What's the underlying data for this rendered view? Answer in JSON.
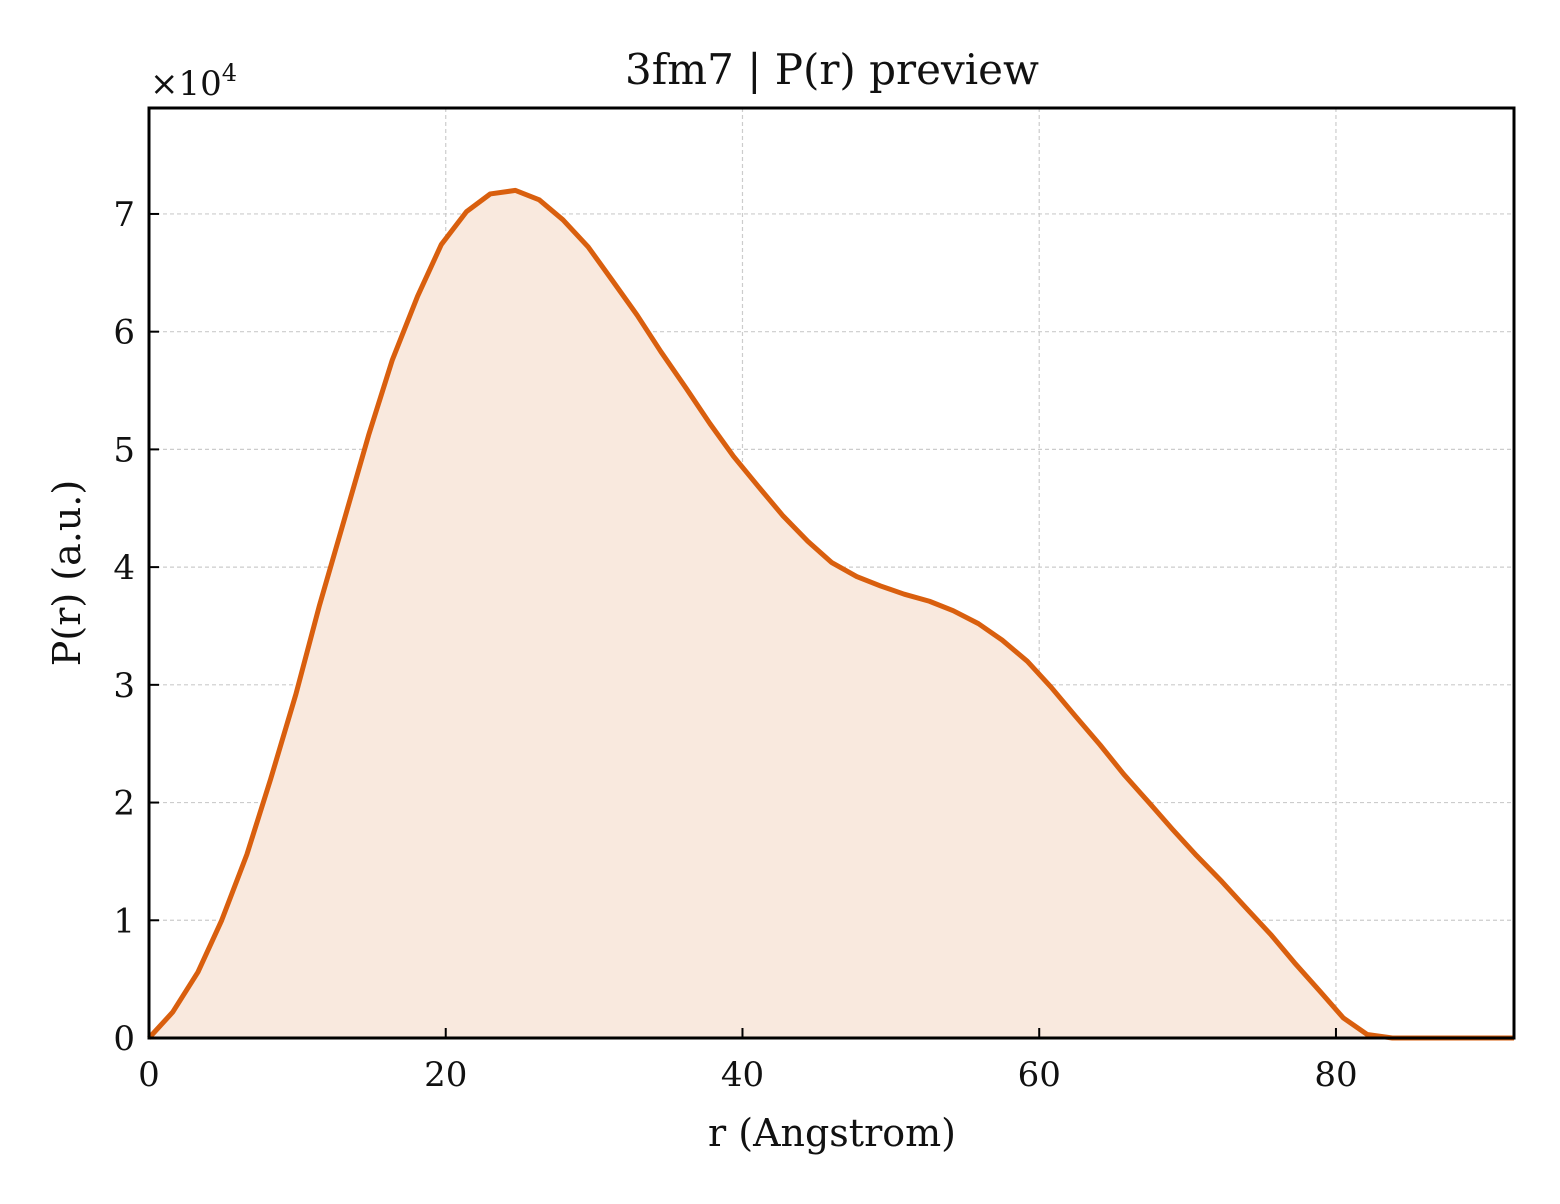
{
  "chart_data": {
    "type": "area",
    "title": "3fm7 | P(r) preview",
    "xlabel": "r (Angstrom)",
    "ylabel": "P(r) (a.u.)",
    "y_scale_label": "×10",
    "y_scale_exponent": "4",
    "xlim": [
      0,
      92
    ],
    "ylim": [
      0,
      7.9
    ],
    "x_ticks": [
      0,
      20,
      40,
      60,
      80
    ],
    "y_ticks": [
      0,
      1,
      2,
      3,
      4,
      5,
      6,
      7
    ],
    "grid": true,
    "colors": {
      "line": "#d95f0e",
      "fill": "#f9e9de",
      "grid": "#cccccc",
      "axes": "#000000"
    },
    "series": [
      {
        "x": [
          0,
          1.6,
          3.3,
          4.9,
          6.6,
          8.2,
          9.9,
          11.5,
          13.2,
          14.8,
          16.4,
          18.1,
          19.7,
          21.4,
          23.0,
          24.7,
          26.3,
          27.9,
          29.6,
          31.2,
          32.9,
          34.5,
          36.2,
          37.8,
          39.4,
          41.1,
          42.7,
          44.4,
          46.0,
          47.7,
          49.3,
          50.9,
          52.6,
          54.2,
          55.9,
          57.5,
          59.2,
          60.8,
          62.4,
          64.1,
          65.7,
          67.4,
          69.0,
          70.6,
          72.3,
          73.9,
          75.6,
          77.2,
          78.9,
          80.5,
          82.1,
          83.8,
          85.4,
          87.1,
          88.7,
          90.4,
          92.0
        ],
        "y": [
          0,
          0.22,
          0.56,
          1.0,
          1.56,
          2.2,
          2.92,
          3.68,
          4.42,
          5.12,
          5.76,
          6.3,
          6.74,
          7.02,
          7.17,
          7.2,
          7.12,
          6.95,
          6.72,
          6.44,
          6.14,
          5.83,
          5.52,
          5.22,
          4.94,
          4.68,
          4.44,
          4.22,
          4.04,
          3.92,
          3.84,
          3.77,
          3.71,
          3.63,
          3.52,
          3.38,
          3.2,
          2.98,
          2.74,
          2.49,
          2.24,
          2.0,
          1.77,
          1.55,
          1.33,
          1.11,
          0.88,
          0.64,
          0.4,
          0.17,
          0.03,
          0.0,
          0.0,
          0.0,
          0.0,
          0.0,
          0.0
        ]
      }
    ]
  }
}
